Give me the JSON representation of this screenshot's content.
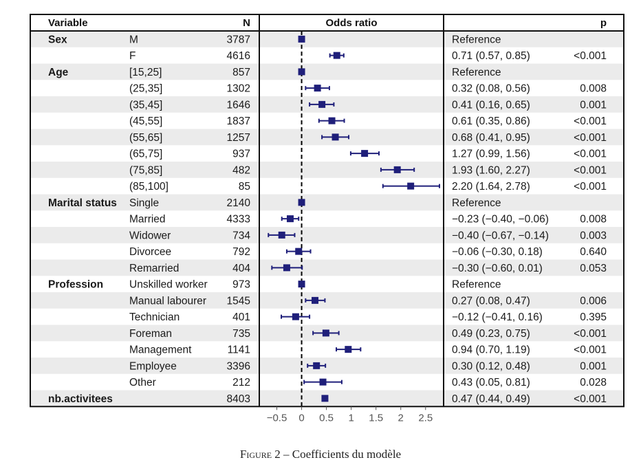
{
  "chart_data": {
    "type": "forest",
    "headers": {
      "variable": "Variable",
      "n": "N",
      "estimate": "Odds ratio",
      "p": "p"
    },
    "reference_text": "Reference",
    "groups": [
      {
        "name": "Sex",
        "rows": [
          {
            "level": "M",
            "n": "3787",
            "ref": true
          },
          {
            "level": "F",
            "n": "4616",
            "est": 0.71,
            "lo": 0.57,
            "hi": 0.85,
            "ci": "0.71 (0.57, 0.85)",
            "p": "<0.001"
          }
        ]
      },
      {
        "name": "Age",
        "rows": [
          {
            "level": "[15,25]",
            "n": "857",
            "ref": true
          },
          {
            "level": "(25,35]",
            "n": "1302",
            "est": 0.32,
            "lo": 0.08,
            "hi": 0.56,
            "ci": "0.32 (0.08, 0.56)",
            "p": "0.008"
          },
          {
            "level": "(35,45]",
            "n": "1646",
            "est": 0.41,
            "lo": 0.16,
            "hi": 0.65,
            "ci": "0.41 (0.16, 0.65)",
            "p": "0.001"
          },
          {
            "level": "(45,55]",
            "n": "1837",
            "est": 0.61,
            "lo": 0.35,
            "hi": 0.86,
            "ci": "0.61 (0.35, 0.86)",
            "p": "<0.001"
          },
          {
            "level": "(55,65]",
            "n": "1257",
            "est": 0.68,
            "lo": 0.41,
            "hi": 0.95,
            "ci": "0.68 (0.41, 0.95)",
            "p": "<0.001"
          },
          {
            "level": "(65,75]",
            "n": "937",
            "est": 1.27,
            "lo": 0.99,
            "hi": 1.56,
            "ci": "1.27 (0.99, 1.56)",
            "p": "<0.001"
          },
          {
            "level": "(75,85]",
            "n": "482",
            "est": 1.93,
            "lo": 1.6,
            "hi": 2.27,
            "ci": "1.93 (1.60, 2.27)",
            "p": "<0.001"
          },
          {
            "level": "(85,100]",
            "n": "85",
            "est": 2.2,
            "lo": 1.64,
            "hi": 2.78,
            "ci": "2.20 (1.64, 2.78)",
            "p": "<0.001"
          }
        ]
      },
      {
        "name": "Marital status",
        "rows": [
          {
            "level": "Single",
            "n": "2140",
            "ref": true
          },
          {
            "level": "Married",
            "n": "4333",
            "est": -0.23,
            "lo": -0.4,
            "hi": -0.06,
            "ci": "−0.23 (−0.40, −0.06)",
            "p": "0.008"
          },
          {
            "level": "Widower",
            "n": "734",
            "est": -0.4,
            "lo": -0.67,
            "hi": -0.14,
            "ci": "−0.40 (−0.67, −0.14)",
            "p": "0.003"
          },
          {
            "level": "Divorcee",
            "n": "792",
            "est": -0.06,
            "lo": -0.3,
            "hi": 0.18,
            "ci": "−0.06 (−0.30, 0.18)",
            "p": "0.640"
          },
          {
            "level": "Remarried",
            "n": "404",
            "est": -0.3,
            "lo": -0.6,
            "hi": 0.01,
            "ci": "−0.30 (−0.60, 0.01)",
            "p": "0.053"
          }
        ]
      },
      {
        "name": "Profession",
        "rows": [
          {
            "level": "Unskilled worker",
            "n": "973",
            "ref": true
          },
          {
            "level": "Manual labourer",
            "n": "1545",
            "est": 0.27,
            "lo": 0.08,
            "hi": 0.47,
            "ci": "0.27 (0.08, 0.47)",
            "p": "0.006"
          },
          {
            "level": "Technician",
            "n": "401",
            "est": -0.12,
            "lo": -0.41,
            "hi": 0.16,
            "ci": "−0.12 (−0.41, 0.16)",
            "p": "0.395"
          },
          {
            "level": "Foreman",
            "n": "735",
            "est": 0.49,
            "lo": 0.23,
            "hi": 0.75,
            "ci": "0.49 (0.23, 0.75)",
            "p": "<0.001"
          },
          {
            "level": "Management",
            "n": "1141",
            "est": 0.94,
            "lo": 0.7,
            "hi": 1.19,
            "ci": "0.94 (0.70, 1.19)",
            "p": "<0.001"
          },
          {
            "level": "Employee",
            "n": "3396",
            "est": 0.3,
            "lo": 0.12,
            "hi": 0.48,
            "ci": "0.30 (0.12, 0.48)",
            "p": "0.001"
          },
          {
            "level": "Other",
            "n": "212",
            "est": 0.43,
            "lo": 0.05,
            "hi": 0.81,
            "ci": "0.43 (0.05, 0.81)",
            "p": "0.028"
          }
        ]
      },
      {
        "name": "nb.activitees",
        "rows": [
          {
            "level": "",
            "n": "8403",
            "est": 0.47,
            "lo": 0.44,
            "hi": 0.49,
            "ci": "0.47 (0.44, 0.49)",
            "p": "<0.001"
          }
        ]
      }
    ],
    "x_ticks": [
      -0.5,
      0,
      0.5,
      1,
      1.5,
      2,
      2.5
    ],
    "x_tick_labels": [
      "−0.5",
      "0",
      "0.5",
      "1",
      "1.5",
      "2",
      "2.5"
    ],
    "x_range": [
      -0.84,
      2.85
    ],
    "reference_line": 0,
    "colors": {
      "marker": "#1f1f7a",
      "stripe": "#ebebeb",
      "border": "#111111"
    }
  },
  "caption": {
    "label": "Figure 2",
    "separator": "–",
    "text": "Coefficients du modèle"
  }
}
